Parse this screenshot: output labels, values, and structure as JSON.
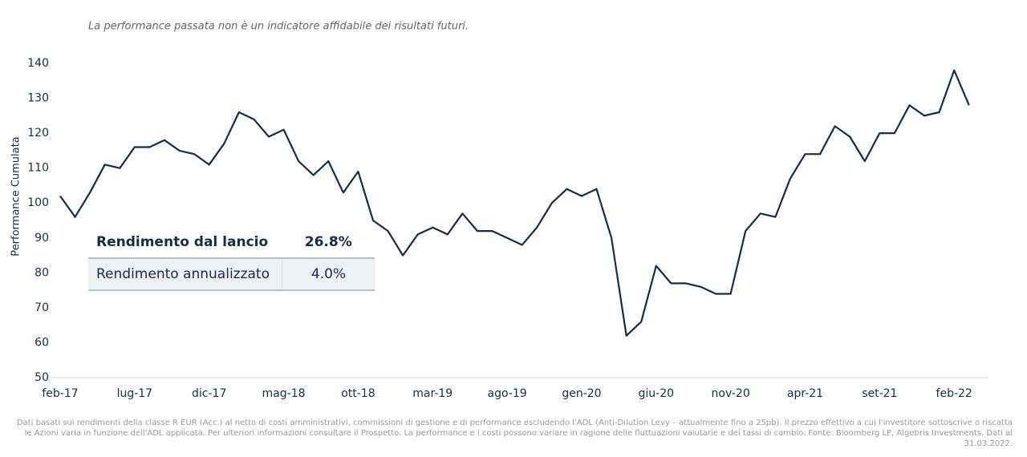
{
  "chart_data": {
    "type": "line",
    "note": "La performance passata non è un indicatore affidabile dei risultati futuri.",
    "y_label": "Performance Cumulata",
    "categories": [
      "feb-17",
      null,
      null,
      null,
      null,
      "lug-17",
      null,
      null,
      null,
      null,
      "dic-17",
      null,
      null,
      null,
      null,
      "mag-18",
      null,
      null,
      null,
      null,
      "ott-18",
      null,
      null,
      null,
      null,
      "mar-19",
      null,
      null,
      null,
      null,
      "ago-19",
      null,
      null,
      null,
      null,
      "gen-20",
      null,
      null,
      null,
      null,
      "giu-20",
      null,
      null,
      null,
      null,
      "nov-20",
      null,
      null,
      null,
      null,
      "apr-21",
      null,
      null,
      null,
      null,
      "set-21",
      null,
      null,
      null,
      null,
      "feb-22",
      null
    ],
    "values": [
      102,
      96,
      103,
      111,
      110,
      116,
      116,
      118,
      115,
      114,
      111,
      117,
      126,
      124,
      119,
      121,
      112,
      108,
      112,
      103,
      109,
      95,
      92,
      85,
      91,
      93,
      91,
      97,
      92,
      92,
      90,
      88,
      93,
      100,
      104,
      102,
      104,
      90,
      62,
      66,
      82,
      77,
      77,
      76,
      74,
      74,
      92,
      97,
      96,
      107,
      114,
      114,
      122,
      119,
      112,
      120,
      120,
      128,
      125,
      126,
      138,
      128
    ],
    "color": "#1b2a4a",
    "ylim": [
      50,
      140
    ],
    "yticks": [
      50,
      60,
      70,
      80,
      90,
      100,
      110,
      120,
      130,
      140
    ],
    "grid": false
  },
  "table": {
    "rows": [
      [
        "Rendimento dal lancio",
        "26.8%"
      ],
      [
        "Rendimento annualizzato",
        "4.0%"
      ]
    ]
  },
  "footnote": "Dati basati sui rendimenti della classe R EUR (Acc.) al netto di costi amministrativi, commissioni di gestione e di performance escludendo l'ADL (Anti-Dilution Levy – attualmente fino a 25pb). Il prezzo effettivo a cui l'investitore sottoscrive o riscatta le Azioni varia in funzione dell'ADL applicata. Per ulteriori informazioni consultare il Prospetto. La performance e i costi possono variare in ragione delle fluttuazioni valutarie e dei tassi di cambio. Fonte: Bloomberg LP, Algebris Investments. Dati al 31.03.2022."
}
